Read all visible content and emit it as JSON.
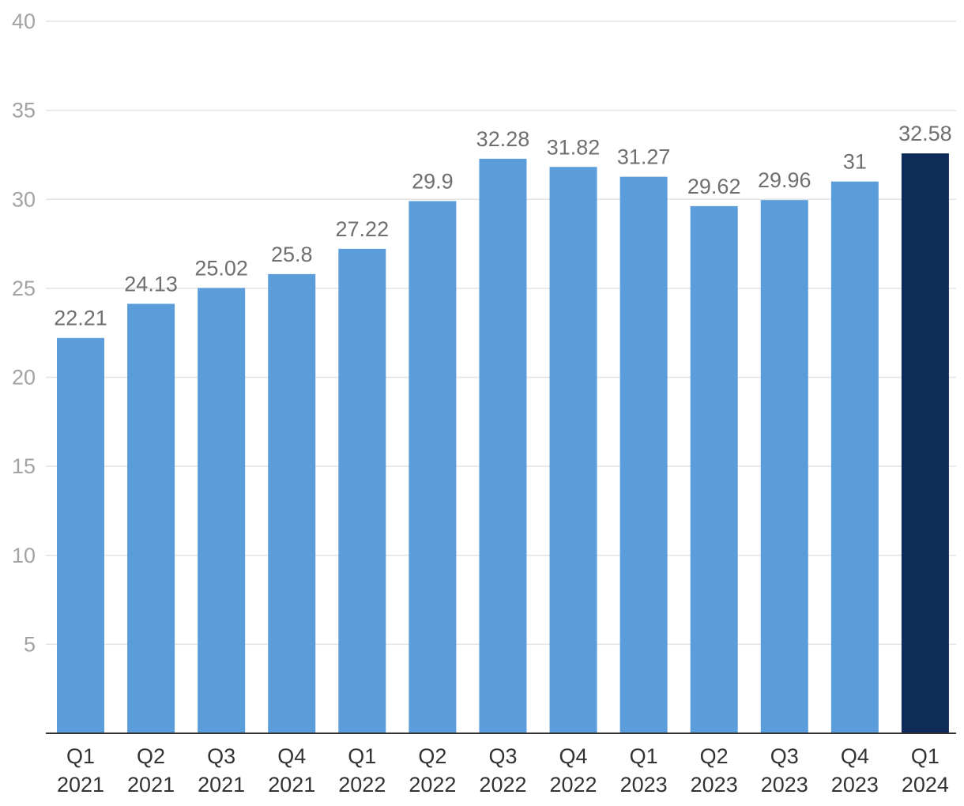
{
  "chart_data": {
    "type": "bar",
    "categories": [
      [
        "Q1",
        "2021"
      ],
      [
        "Q2",
        "2021"
      ],
      [
        "Q3",
        "2021"
      ],
      [
        "Q4",
        "2021"
      ],
      [
        "Q1",
        "2022"
      ],
      [
        "Q2",
        "2022"
      ],
      [
        "Q3",
        "2022"
      ],
      [
        "Q4",
        "2022"
      ],
      [
        "Q1",
        "2023"
      ],
      [
        "Q2",
        "2023"
      ],
      [
        "Q3",
        "2023"
      ],
      [
        "Q4",
        "2023"
      ],
      [
        "Q1",
        "2024"
      ]
    ],
    "values": [
      22.21,
      24.13,
      25.02,
      25.8,
      27.22,
      29.9,
      32.28,
      31.82,
      31.27,
      29.62,
      29.96,
      31,
      32.58
    ],
    "data_labels": [
      "22.21",
      "24.13",
      "25.02",
      "25.8",
      "27.22",
      "29.9",
      "32.28",
      "31.82",
      "31.27",
      "29.62",
      "29.96",
      "31",
      "32.58"
    ],
    "title": "",
    "xlabel": "",
    "ylabel": "",
    "ylim": [
      0,
      40
    ],
    "yticks": [
      5,
      10,
      15,
      20,
      25,
      30,
      35,
      40
    ],
    "grid": true,
    "legend": "none",
    "colors": {
      "bar": "#5b9dda",
      "highlight_bar": "#0f2b57",
      "grid": "#e3e3e3",
      "axis": "#333333",
      "y_tick_text": "#a3a3a3",
      "x_tick_text": "#333333",
      "label_text": "#6f6f6f"
    },
    "highlight_index": 12
  }
}
